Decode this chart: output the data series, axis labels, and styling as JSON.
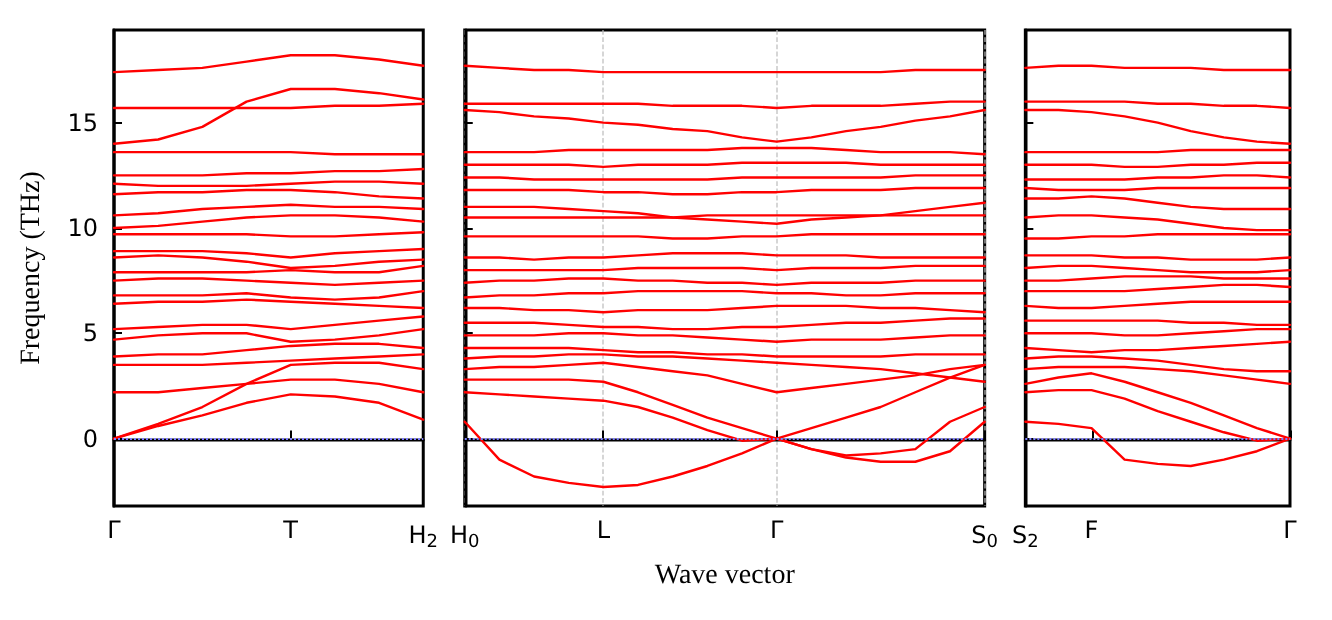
{
  "chart_data": [
    {
      "type": "line",
      "ylabel": "Frequency (THz)",
      "categories": [
        "Γ",
        null,
        null,
        null,
        "T",
        null,
        null,
        "H$_{2}$"
      ],
      "ylim": [
        -3.2,
        19.4
      ],
      "yticks": [
        0,
        5,
        10,
        15
      ],
      "line_style": "solid",
      "ref_lines": [
        {
          "axis": "y",
          "value": 0,
          "color": "#7f7fff",
          "line_style": "dotted"
        }
      ],
      "series": [
        {
          "color": "#ff0000",
          "values": [
            0,
            0.6,
            1.1,
            1.7,
            2.1,
            2.0,
            1.7,
            0.9
          ]
        },
        {
          "color": "#ff0000",
          "values": [
            0,
            0.7,
            1.5,
            2.6,
            3.5,
            3.6,
            3.6,
            3.3
          ]
        },
        {
          "color": "#ff0000",
          "values": [
            2.2,
            2.2,
            2.4,
            2.6,
            2.8,
            2.8,
            2.6,
            2.2
          ]
        },
        {
          "color": "#ff0000",
          "values": [
            3.5,
            3.5,
            3.5,
            3.6,
            3.7,
            3.8,
            3.9,
            4.0
          ]
        },
        {
          "color": "#ff0000",
          "values": [
            3.9,
            4.0,
            4.0,
            4.2,
            4.4,
            4.5,
            4.5,
            4.3
          ]
        },
        {
          "color": "#ff0000",
          "values": [
            4.7,
            4.9,
            5.0,
            5.0,
            4.6,
            4.7,
            4.9,
            5.2
          ]
        },
        {
          "color": "#ff0000",
          "values": [
            5.2,
            5.3,
            5.4,
            5.4,
            5.2,
            5.4,
            5.6,
            5.8
          ]
        },
        {
          "color": "#ff0000",
          "values": [
            6.4,
            6.5,
            6.5,
            6.6,
            6.5,
            6.4,
            6.3,
            6.2
          ]
        },
        {
          "color": "#ff0000",
          "values": [
            6.8,
            6.8,
            6.8,
            6.9,
            6.7,
            6.6,
            6.7,
            7.0
          ]
        },
        {
          "color": "#ff0000",
          "values": [
            7.5,
            7.6,
            7.6,
            7.5,
            7.4,
            7.3,
            7.4,
            7.5
          ]
        },
        {
          "color": "#ff0000",
          "values": [
            7.9,
            7.9,
            7.9,
            7.9,
            8.0,
            7.9,
            7.9,
            8.2
          ]
        },
        {
          "color": "#ff0000",
          "values": [
            8.6,
            8.7,
            8.6,
            8.4,
            8.1,
            8.2,
            8.4,
            8.5
          ]
        },
        {
          "color": "#ff0000",
          "values": [
            8.9,
            8.9,
            8.9,
            8.8,
            8.6,
            8.8,
            8.9,
            9.0
          ]
        },
        {
          "color": "#ff0000",
          "values": [
            9.7,
            9.7,
            9.7,
            9.7,
            9.6,
            9.6,
            9.7,
            9.8
          ]
        },
        {
          "color": "#ff0000",
          "values": [
            10.0,
            10.1,
            10.3,
            10.5,
            10.6,
            10.6,
            10.5,
            10.3
          ]
        },
        {
          "color": "#ff0000",
          "values": [
            10.6,
            10.7,
            10.9,
            11.0,
            11.1,
            11.0,
            11.0,
            10.9
          ]
        },
        {
          "color": "#ff0000",
          "values": [
            11.6,
            11.7,
            11.7,
            11.8,
            11.8,
            11.7,
            11.5,
            11.4
          ]
        },
        {
          "color": "#ff0000",
          "values": [
            12.1,
            12.0,
            12.0,
            12.0,
            12.1,
            12.2,
            12.2,
            12.1
          ]
        },
        {
          "color": "#ff0000",
          "values": [
            12.5,
            12.5,
            12.5,
            12.6,
            12.6,
            12.7,
            12.7,
            12.8
          ]
        },
        {
          "color": "#ff0000",
          "values": [
            13.6,
            13.6,
            13.6,
            13.6,
            13.6,
            13.5,
            13.5,
            13.5
          ]
        },
        {
          "color": "#ff0000",
          "values": [
            14.0,
            14.2,
            14.8,
            16.0,
            16.6,
            16.6,
            16.4,
            16.1
          ]
        },
        {
          "color": "#ff0000",
          "values": [
            15.7,
            15.7,
            15.7,
            15.7,
            15.7,
            15.8,
            15.8,
            15.9
          ]
        },
        {
          "color": "#ff0000",
          "values": [
            17.4,
            17.5,
            17.6,
            17.9,
            18.2,
            18.2,
            18.0,
            17.7
          ]
        }
      ]
    },
    {
      "type": "line",
      "xlabel": "Wave vector",
      "categories": [
        "H$_{0}$",
        null,
        null,
        null,
        "L",
        null,
        null,
        null,
        null,
        "Γ",
        null,
        null,
        null,
        null,
        null,
        "S$_{0}$"
      ],
      "ylim": [
        -3.2,
        19.4
      ],
      "yticks": [
        0,
        5,
        10,
        15
      ],
      "tick_labels": "x",
      "grid": "x",
      "line_style": "solid",
      "ref_lines": [
        {
          "axis": "y",
          "value": 0,
          "color": "#7f7fff",
          "line_style": "dotted"
        }
      ],
      "series": [
        {
          "color": "#ff0000",
          "values": [
            0.8,
            -1.0,
            -1.8,
            -2.1,
            -2.3,
            -2.2,
            -1.8,
            -1.3,
            -0.7,
            0,
            0.5,
            1.0,
            1.5,
            2.2,
            2.9,
            3.5
          ]
        },
        {
          "color": "#ff0000",
          "values": [
            2.2,
            2.1,
            2.0,
            1.9,
            1.8,
            1.5,
            1.0,
            0.4,
            -0.1,
            0,
            -0.5,
            -0.9,
            -1.1,
            -1.1,
            -0.6,
            0.8
          ]
        },
        {
          "color": "#ff0000",
          "values": [
            2.8,
            2.8,
            2.8,
            2.8,
            2.7,
            2.2,
            1.6,
            1.0,
            0.5,
            0,
            -0.5,
            -0.8,
            -0.7,
            -0.5,
            0.8,
            1.5
          ]
        },
        {
          "color": "#ff0000",
          "values": [
            3.3,
            3.4,
            3.4,
            3.5,
            3.6,
            3.4,
            3.2,
            3.0,
            2.6,
            2.2,
            2.4,
            2.6,
            2.8,
            3.0,
            3.3,
            3.5
          ]
        },
        {
          "color": "#ff0000",
          "values": [
            3.8,
            3.9,
            3.9,
            4.0,
            4.0,
            3.9,
            3.9,
            3.8,
            3.7,
            3.6,
            3.5,
            3.4,
            3.3,
            3.1,
            2.9,
            2.7
          ]
        },
        {
          "color": "#ff0000",
          "values": [
            4.3,
            4.3,
            4.3,
            4.3,
            4.2,
            4.1,
            4.1,
            4.0,
            4.0,
            3.9,
            3.9,
            3.9,
            3.9,
            4.0,
            4.0,
            4.0
          ]
        },
        {
          "color": "#ff0000",
          "values": [
            4.9,
            4.9,
            4.9,
            5.0,
            5.0,
            4.9,
            4.9,
            4.8,
            4.7,
            4.6,
            4.7,
            4.7,
            4.7,
            4.8,
            4.9,
            4.9
          ]
        },
        {
          "color": "#ff0000",
          "values": [
            5.5,
            5.5,
            5.5,
            5.4,
            5.3,
            5.3,
            5.2,
            5.2,
            5.3,
            5.3,
            5.4,
            5.5,
            5.5,
            5.6,
            5.7,
            5.7
          ]
        },
        {
          "color": "#ff0000",
          "values": [
            6.2,
            6.2,
            6.1,
            6.1,
            6.0,
            6.1,
            6.1,
            6.1,
            6.2,
            6.3,
            6.3,
            6.3,
            6.2,
            6.2,
            6.1,
            6.0
          ]
        },
        {
          "color": "#ff0000",
          "values": [
            6.7,
            6.8,
            6.8,
            6.9,
            6.9,
            7.0,
            7.0,
            7.0,
            7.0,
            6.9,
            6.9,
            6.8,
            6.8,
            6.9,
            6.9,
            6.9
          ]
        },
        {
          "color": "#ff0000",
          "values": [
            7.4,
            7.5,
            7.5,
            7.6,
            7.6,
            7.5,
            7.5,
            7.4,
            7.4,
            7.3,
            7.4,
            7.4,
            7.4,
            7.5,
            7.5,
            7.5
          ]
        },
        {
          "color": "#ff0000",
          "values": [
            8.0,
            8.0,
            8.0,
            8.0,
            8.0,
            8.1,
            8.1,
            8.1,
            8.1,
            8.0,
            8.1,
            8.1,
            8.1,
            8.2,
            8.2,
            8.2
          ]
        },
        {
          "color": "#ff0000",
          "values": [
            8.6,
            8.6,
            8.5,
            8.6,
            8.6,
            8.7,
            8.8,
            8.8,
            8.8,
            8.7,
            8.7,
            8.7,
            8.6,
            8.6,
            8.6,
            8.6
          ]
        },
        {
          "color": "#ff0000",
          "values": [
            9.6,
            9.6,
            9.6,
            9.6,
            9.6,
            9.6,
            9.5,
            9.5,
            9.6,
            9.6,
            9.7,
            9.7,
            9.7,
            9.7,
            9.7,
            9.7
          ]
        },
        {
          "color": "#ff0000",
          "values": [
            10.5,
            10.5,
            10.5,
            10.5,
            10.5,
            10.5,
            10.5,
            10.6,
            10.6,
            10.6,
            10.6,
            10.6,
            10.6,
            10.6,
            10.6,
            10.6
          ]
        },
        {
          "color": "#ff0000",
          "values": [
            11.0,
            11.0,
            11.0,
            10.9,
            10.8,
            10.7,
            10.5,
            10.4,
            10.3,
            10.2,
            10.4,
            10.5,
            10.6,
            10.8,
            11.0,
            11.2
          ]
        },
        {
          "color": "#ff0000",
          "values": [
            11.8,
            11.8,
            11.8,
            11.8,
            11.7,
            11.7,
            11.6,
            11.6,
            11.7,
            11.7,
            11.8,
            11.8,
            11.8,
            11.9,
            11.9,
            11.9
          ]
        },
        {
          "color": "#ff0000",
          "values": [
            12.4,
            12.4,
            12.3,
            12.3,
            12.3,
            12.3,
            12.3,
            12.3,
            12.4,
            12.4,
            12.4,
            12.4,
            12.4,
            12.5,
            12.5,
            12.5
          ]
        },
        {
          "color": "#ff0000",
          "values": [
            13.0,
            13.0,
            13.0,
            13.0,
            12.9,
            13.0,
            13.0,
            13.0,
            13.1,
            13.1,
            13.1,
            13.1,
            13.0,
            13.0,
            13.0,
            13.0
          ]
        },
        {
          "color": "#ff0000",
          "values": [
            13.6,
            13.6,
            13.6,
            13.7,
            13.7,
            13.7,
            13.7,
            13.7,
            13.8,
            13.8,
            13.8,
            13.7,
            13.6,
            13.6,
            13.6,
            13.5
          ]
        },
        {
          "color": "#ff0000",
          "values": [
            15.6,
            15.5,
            15.3,
            15.2,
            15.0,
            14.9,
            14.7,
            14.6,
            14.3,
            14.1,
            14.3,
            14.6,
            14.8,
            15.1,
            15.3,
            15.6
          ]
        },
        {
          "color": "#ff0000",
          "values": [
            15.9,
            15.9,
            15.9,
            15.9,
            15.9,
            15.9,
            15.8,
            15.8,
            15.8,
            15.7,
            15.8,
            15.8,
            15.8,
            15.9,
            16.0,
            16.0
          ]
        },
        {
          "color": "#ff0000",
          "values": [
            17.7,
            17.6,
            17.5,
            17.5,
            17.4,
            17.4,
            17.4,
            17.4,
            17.4,
            17.4,
            17.4,
            17.4,
            17.4,
            17.5,
            17.5,
            17.5
          ]
        }
      ]
    },
    {
      "type": "line",
      "categories": [
        "S$_{2}$",
        null,
        "F",
        null,
        null,
        null,
        null,
        null,
        "Γ"
      ],
      "ylim": [
        -3.2,
        19.4
      ],
      "yticks": [
        0,
        5,
        10,
        15
      ],
      "tick_labels": "x",
      "line_style": "solid",
      "ref_lines": [
        {
          "axis": "y",
          "value": 0,
          "color": "#7f7fff",
          "line_style": "dotted"
        }
      ],
      "series": [
        {
          "color": "#ff0000",
          "values": [
            0.8,
            0.7,
            0.5,
            -1.0,
            -1.2,
            -1.3,
            -1.0,
            -0.6,
            0
          ]
        },
        {
          "color": "#ff0000",
          "values": [
            2.2,
            2.3,
            2.3,
            1.9,
            1.3,
            0.8,
            0.3,
            -0.1,
            0
          ]
        },
        {
          "color": "#ff0000",
          "values": [
            2.6,
            2.9,
            3.1,
            2.7,
            2.2,
            1.7,
            1.1,
            0.5,
            0
          ]
        },
        {
          "color": "#ff0000",
          "values": [
            3.3,
            3.4,
            3.4,
            3.4,
            3.3,
            3.2,
            3.0,
            2.8,
            2.6
          ]
        },
        {
          "color": "#ff0000",
          "values": [
            3.8,
            3.9,
            3.9,
            3.8,
            3.7,
            3.5,
            3.3,
            3.2,
            3.2
          ]
        },
        {
          "color": "#ff0000",
          "values": [
            4.3,
            4.2,
            4.1,
            4.2,
            4.2,
            4.3,
            4.4,
            4.5,
            4.6
          ]
        },
        {
          "color": "#ff0000",
          "values": [
            5.0,
            5.0,
            5.0,
            4.9,
            4.9,
            5.0,
            5.1,
            5.2,
            5.2
          ]
        },
        {
          "color": "#ff0000",
          "values": [
            5.6,
            5.6,
            5.6,
            5.6,
            5.6,
            5.5,
            5.5,
            5.4,
            5.4
          ]
        },
        {
          "color": "#ff0000",
          "values": [
            6.3,
            6.2,
            6.2,
            6.3,
            6.4,
            6.5,
            6.5,
            6.5,
            6.5
          ]
        },
        {
          "color": "#ff0000",
          "values": [
            7.0,
            7.0,
            7.0,
            7.0,
            7.1,
            7.2,
            7.3,
            7.3,
            7.2
          ]
        },
        {
          "color": "#ff0000",
          "values": [
            7.5,
            7.5,
            7.6,
            7.7,
            7.7,
            7.7,
            7.6,
            7.6,
            7.6
          ]
        },
        {
          "color": "#ff0000",
          "values": [
            8.1,
            8.2,
            8.2,
            8.1,
            8.0,
            7.9,
            7.9,
            7.9,
            8.0
          ]
        },
        {
          "color": "#ff0000",
          "values": [
            8.7,
            8.7,
            8.7,
            8.6,
            8.6,
            8.5,
            8.5,
            8.5,
            8.6
          ]
        },
        {
          "color": "#ff0000",
          "values": [
            9.5,
            9.5,
            9.6,
            9.6,
            9.7,
            9.7,
            9.7,
            9.7,
            9.7
          ]
        },
        {
          "color": "#ff0000",
          "values": [
            10.5,
            10.6,
            10.6,
            10.5,
            10.4,
            10.2,
            10.0,
            9.9,
            9.9
          ]
        },
        {
          "color": "#ff0000",
          "values": [
            11.4,
            11.4,
            11.5,
            11.4,
            11.2,
            11.0,
            10.9,
            10.9,
            10.9
          ]
        },
        {
          "color": "#ff0000",
          "values": [
            11.9,
            11.8,
            11.8,
            11.8,
            11.9,
            11.9,
            11.9,
            11.9,
            11.9
          ]
        },
        {
          "color": "#ff0000",
          "values": [
            12.3,
            12.3,
            12.3,
            12.3,
            12.4,
            12.4,
            12.5,
            12.5,
            12.4
          ]
        },
        {
          "color": "#ff0000",
          "values": [
            13.0,
            13.0,
            13.0,
            12.9,
            12.9,
            13.0,
            13.0,
            13.1,
            13.1
          ]
        },
        {
          "color": "#ff0000",
          "values": [
            13.6,
            13.6,
            13.6,
            13.6,
            13.6,
            13.7,
            13.7,
            13.7,
            13.7
          ]
        },
        {
          "color": "#ff0000",
          "values": [
            15.6,
            15.6,
            15.5,
            15.3,
            15.0,
            14.6,
            14.3,
            14.1,
            14.0
          ]
        },
        {
          "color": "#ff0000",
          "values": [
            16.0,
            16.0,
            16.0,
            16.0,
            15.9,
            15.9,
            15.8,
            15.8,
            15.7
          ]
        },
        {
          "color": "#ff0000",
          "values": [
            17.6,
            17.7,
            17.7,
            17.6,
            17.6,
            17.6,
            17.5,
            17.5,
            17.5
          ]
        }
      ]
    }
  ]
}
